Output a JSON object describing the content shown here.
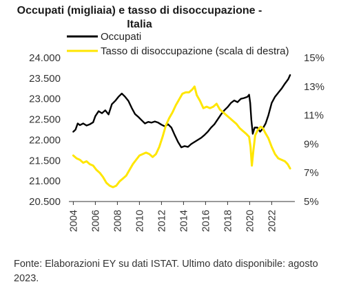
{
  "chart_data": {
    "type": "line",
    "title": [
      "Occupati (migliaia) e tasso di disoccupazione -",
      "Italia"
    ],
    "series": [
      {
        "name": "Occupati",
        "axis": "left",
        "color": "#000000",
        "points": [
          [
            2004.0,
            22200
          ],
          [
            2004.2,
            22250
          ],
          [
            2004.4,
            22400
          ],
          [
            2004.6,
            22360
          ],
          [
            2004.9,
            22400
          ],
          [
            2005.2,
            22350
          ],
          [
            2005.5,
            22380
          ],
          [
            2005.8,
            22430
          ],
          [
            2006.0,
            22580
          ],
          [
            2006.3,
            22700
          ],
          [
            2006.6,
            22650
          ],
          [
            2006.9,
            22720
          ],
          [
            2007.2,
            22620
          ],
          [
            2007.5,
            22870
          ],
          [
            2007.8,
            22950
          ],
          [
            2008.1,
            23050
          ],
          [
            2008.4,
            23130
          ],
          [
            2008.7,
            23050
          ],
          [
            2009.0,
            22950
          ],
          [
            2009.3,
            22780
          ],
          [
            2009.6,
            22630
          ],
          [
            2009.9,
            22560
          ],
          [
            2010.2,
            22480
          ],
          [
            2010.5,
            22400
          ],
          [
            2010.8,
            22440
          ],
          [
            2011.1,
            22420
          ],
          [
            2011.4,
            22450
          ],
          [
            2011.7,
            22420
          ],
          [
            2012.0,
            22370
          ],
          [
            2012.3,
            22330
          ],
          [
            2012.6,
            22380
          ],
          [
            2012.9,
            22300
          ],
          [
            2013.2,
            22120
          ],
          [
            2013.5,
            21950
          ],
          [
            2013.8,
            21820
          ],
          [
            2014.1,
            21850
          ],
          [
            2014.4,
            21830
          ],
          [
            2014.7,
            21900
          ],
          [
            2015.0,
            21950
          ],
          [
            2015.3,
            22000
          ],
          [
            2015.6,
            22050
          ],
          [
            2015.9,
            22120
          ],
          [
            2016.2,
            22200
          ],
          [
            2016.5,
            22300
          ],
          [
            2016.8,
            22380
          ],
          [
            2017.1,
            22500
          ],
          [
            2017.4,
            22620
          ],
          [
            2017.7,
            22720
          ],
          [
            2018.0,
            22800
          ],
          [
            2018.3,
            22900
          ],
          [
            2018.6,
            22960
          ],
          [
            2018.9,
            22920
          ],
          [
            2019.2,
            23000
          ],
          [
            2019.5,
            23020
          ],
          [
            2019.8,
            23050
          ],
          [
            2019.95,
            23100
          ],
          [
            2020.05,
            22900
          ],
          [
            2020.15,
            22500
          ],
          [
            2020.28,
            22150
          ],
          [
            2020.45,
            22300
          ],
          [
            2020.7,
            22300
          ],
          [
            2020.95,
            22200
          ],
          [
            2021.2,
            22280
          ],
          [
            2021.45,
            22400
          ],
          [
            2021.7,
            22600
          ],
          [
            2022.0,
            22900
          ],
          [
            2022.3,
            23050
          ],
          [
            2022.6,
            23150
          ],
          [
            2022.9,
            23250
          ],
          [
            2023.2,
            23370
          ],
          [
            2023.5,
            23480
          ],
          [
            2023.67,
            23580
          ]
        ]
      },
      {
        "name": "Tasso di disoccupazione (scala di destra)",
        "axis": "right",
        "color": "#ffe600",
        "points": [
          [
            2004.0,
            8.2
          ],
          [
            2004.3,
            8.0
          ],
          [
            2004.6,
            7.9
          ],
          [
            2004.9,
            7.7
          ],
          [
            2005.2,
            7.8
          ],
          [
            2005.5,
            7.6
          ],
          [
            2005.8,
            7.5
          ],
          [
            2006.1,
            7.2
          ],
          [
            2006.4,
            7.0
          ],
          [
            2006.7,
            6.7
          ],
          [
            2007.0,
            6.3
          ],
          [
            2007.3,
            6.1
          ],
          [
            2007.6,
            6.0
          ],
          [
            2007.9,
            6.1
          ],
          [
            2008.2,
            6.4
          ],
          [
            2008.5,
            6.6
          ],
          [
            2008.8,
            6.8
          ],
          [
            2009.1,
            7.2
          ],
          [
            2009.4,
            7.6
          ],
          [
            2009.7,
            7.9
          ],
          [
            2010.0,
            8.2
          ],
          [
            2010.3,
            8.3
          ],
          [
            2010.6,
            8.4
          ],
          [
            2010.9,
            8.3
          ],
          [
            2011.2,
            8.1
          ],
          [
            2011.5,
            8.3
          ],
          [
            2011.8,
            8.8
          ],
          [
            2012.1,
            9.5
          ],
          [
            2012.4,
            10.3
          ],
          [
            2012.7,
            10.8
          ],
          [
            2013.0,
            11.2
          ],
          [
            2013.3,
            11.7
          ],
          [
            2013.6,
            12.1
          ],
          [
            2013.9,
            12.5
          ],
          [
            2014.2,
            12.6
          ],
          [
            2014.5,
            12.6
          ],
          [
            2014.8,
            12.8
          ],
          [
            2015.0,
            13.0
          ],
          [
            2015.2,
            12.4
          ],
          [
            2015.5,
            12.0
          ],
          [
            2015.8,
            11.5
          ],
          [
            2016.1,
            11.6
          ],
          [
            2016.4,
            11.5
          ],
          [
            2016.7,
            11.6
          ],
          [
            2017.0,
            11.8
          ],
          [
            2017.3,
            11.4
          ],
          [
            2017.6,
            11.2
          ],
          [
            2017.9,
            11.0
          ],
          [
            2018.2,
            10.8
          ],
          [
            2018.5,
            10.6
          ],
          [
            2018.8,
            10.4
          ],
          [
            2019.1,
            10.1
          ],
          [
            2019.4,
            9.9
          ],
          [
            2019.7,
            9.7
          ],
          [
            2019.95,
            9.5
          ],
          [
            2020.08,
            8.8
          ],
          [
            2020.2,
            7.5
          ],
          [
            2020.33,
            8.5
          ],
          [
            2020.5,
            9.6
          ],
          [
            2020.75,
            10.0
          ],
          [
            2021.0,
            10.2
          ],
          [
            2021.2,
            10.1
          ],
          [
            2021.4,
            9.8
          ],
          [
            2021.7,
            9.4
          ],
          [
            2022.0,
            8.8
          ],
          [
            2022.3,
            8.3
          ],
          [
            2022.6,
            8.0
          ],
          [
            2022.9,
            7.9
          ],
          [
            2023.2,
            7.8
          ],
          [
            2023.45,
            7.6
          ],
          [
            2023.67,
            7.3
          ]
        ]
      }
    ],
    "y_left": {
      "min": 20500,
      "max": 24000,
      "ticks": [
        "24.000",
        "23.500",
        "23.000",
        "22.500",
        "22.000",
        "21.500",
        "21.000",
        "20.500"
      ],
      "values": [
        24000,
        23500,
        23000,
        22500,
        22000,
        21500,
        21000,
        20500
      ]
    },
    "y_right": {
      "min": 5,
      "max": 15,
      "ticks": [
        "15%",
        "13%",
        "11%",
        "9%",
        "7%",
        "5%"
      ],
      "values": [
        15,
        13,
        11,
        9,
        7,
        5
      ]
    },
    "x": {
      "min": 2003.6,
      "max": 2024.1,
      "ticks": [
        "2004",
        "2006",
        "2008",
        "2010",
        "2012",
        "2014",
        "2016",
        "2018",
        "2020",
        "2022"
      ],
      "values": [
        2004,
        2006,
        2008,
        2010,
        2012,
        2014,
        2016,
        2018,
        2020,
        2022
      ]
    },
    "grid": false,
    "legend_position": "top"
  },
  "source_note": "Fonte: Elaborazioni EY su dati ISTAT. Ultimo dato disponibile: agosto 2023."
}
